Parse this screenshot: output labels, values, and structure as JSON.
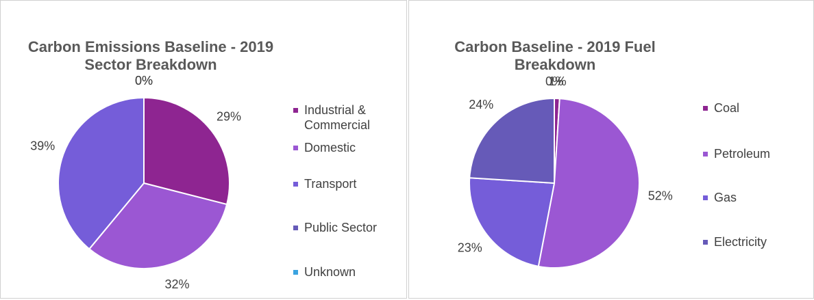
{
  "chart_data": [
    {
      "type": "pie",
      "title": "Carbon Emissions Baseline - 2019 Sector Breakdown",
      "categories": [
        "Industrial & Commercial",
        "Domestic",
        "Transport",
        "Public Sector",
        "Unknown"
      ],
      "values": [
        29,
        32,
        39,
        0,
        0
      ],
      "value_labels": [
        "29%",
        "32%",
        "39%",
        "0%",
        "0%"
      ],
      "colors": [
        "#8e2591",
        "#9b57d3",
        "#755dd9",
        "#665ab8",
        "#3ba3e0"
      ]
    },
    {
      "type": "pie",
      "title": "Carbon Baseline - 2019 Fuel Breakdown",
      "categories": [
        "Coal",
        "Petroleum",
        "Gas",
        "Electricity",
        null
      ],
      "values": [
        1,
        52,
        23,
        24,
        0
      ],
      "value_labels": [
        "1%",
        "52%",
        "23%",
        "24%",
        "0%"
      ],
      "colors": [
        "#8e2591",
        "#9b57d3",
        "#755dd9",
        "#665ab8",
        "#3ba3e0"
      ]
    }
  ]
}
